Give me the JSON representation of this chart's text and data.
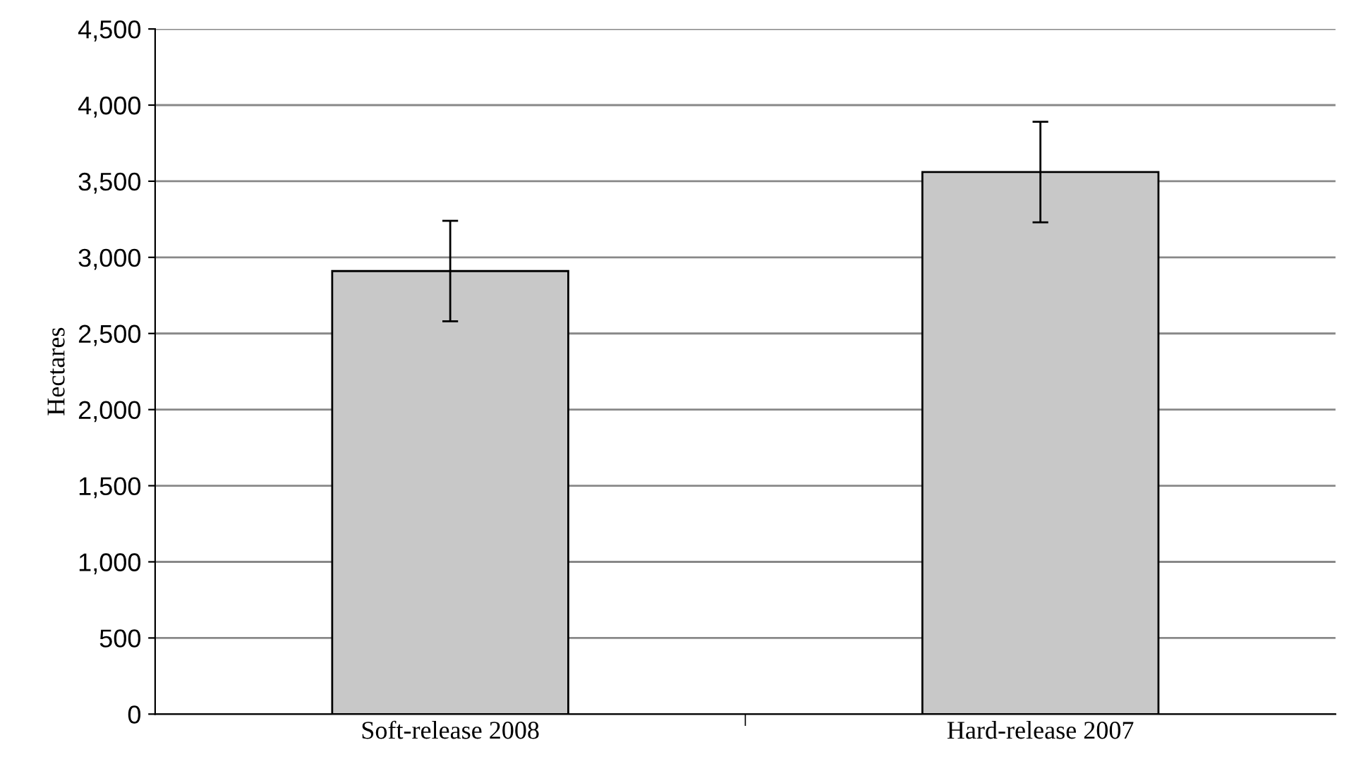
{
  "chart_data": {
    "type": "bar",
    "ylabel": "Hectares",
    "categories": [
      "Soft-release 2008",
      "Hard-release 2007"
    ],
    "values": [
      2910,
      3560
    ],
    "errors": [
      330,
      330
    ],
    "color": "#c8c8c8",
    "ylim": [
      0,
      4500
    ],
    "yticks": [
      {
        "value": 0,
        "label": "0"
      },
      {
        "value": 500,
        "label": "500"
      },
      {
        "value": 1000,
        "label": "1,000"
      },
      {
        "value": 1500,
        "label": "1,500"
      },
      {
        "value": 2000,
        "label": "2,000"
      },
      {
        "value": 2500,
        "label": "2,500"
      },
      {
        "value": 3000,
        "label": "3,000"
      },
      {
        "value": 3500,
        "label": "3,500"
      },
      {
        "value": 4000,
        "label": "4,000"
      },
      {
        "value": 4500,
        "label": "4,500"
      }
    ],
    "grid": "y",
    "legend": false
  }
}
